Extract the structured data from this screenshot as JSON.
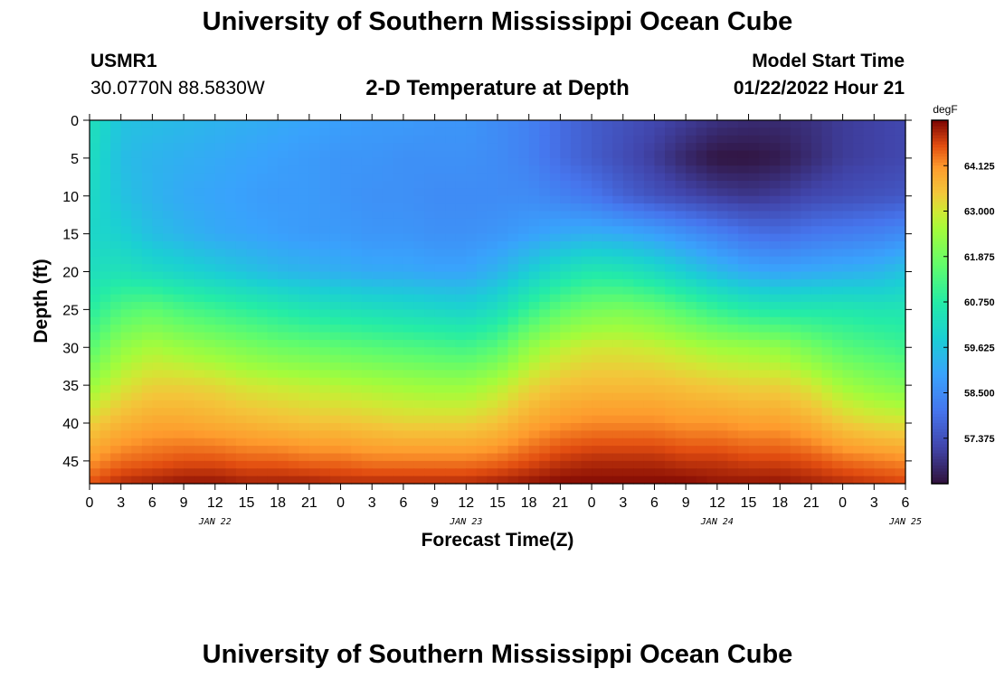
{
  "header": {
    "title": "University of Southern Mississippi Ocean Cube",
    "station_id": "USMR1",
    "station_location": "30.0770N  88.5830W",
    "subtitle": "2-D Temperature at Depth",
    "start_label": "Model Start Time",
    "start_value": "01/22/2022 Hour 21"
  },
  "footer": {
    "title": "University of Southern Mississippi Ocean Cube"
  },
  "chart_data": {
    "type": "heatmap",
    "title": "2-D Temperature at Depth",
    "xlabel": "Forecast Time(Z)",
    "ylabel": "Depth (ft)",
    "x_tick_labels": [
      "0",
      "3",
      "6",
      "9",
      "12",
      "15",
      "18",
      "21",
      "0",
      "3",
      "6",
      "9",
      "12",
      "15",
      "18",
      "21",
      "0",
      "3",
      "6",
      "9",
      "12",
      "15",
      "18",
      "21",
      "0",
      "3",
      "6"
    ],
    "x_day_labels": [
      {
        "label": "JAN 22",
        "hour_offset": 12
      },
      {
        "label": "JAN 23",
        "hour_offset": 36
      },
      {
        "label": "JAN 24",
        "hour_offset": 60
      },
      {
        "label": "JAN 25",
        "hour_offset": 78
      }
    ],
    "x_range_hours": [
      0,
      78
    ],
    "y_ticks": [
      0,
      5,
      10,
      15,
      20,
      25,
      30,
      35,
      40,
      45
    ],
    "y_range": [
      0,
      48
    ],
    "colorbar": {
      "unit": "degF",
      "ticks": [
        "64.125",
        "63.000",
        "61.875",
        "60.750",
        "59.625",
        "58.500",
        "57.375"
      ],
      "range": [
        56.25,
        65.25
      ]
    },
    "depth_levels_ft": [
      0,
      5,
      10,
      15,
      20,
      25,
      30,
      35,
      40,
      45,
      48
    ],
    "time_hours": [
      0,
      3,
      6,
      9,
      12,
      15,
      18,
      21,
      24,
      27,
      30,
      33,
      36,
      39,
      42,
      45,
      48,
      51,
      54,
      57,
      60,
      63,
      66,
      69,
      72,
      75,
      78
    ],
    "temperature_degF": [
      [
        60.4,
        59.6,
        59.5,
        59.4,
        59.3,
        59.2,
        59.1,
        59.0,
        58.9,
        58.8,
        58.8,
        58.7,
        58.7,
        58.5,
        58.3,
        57.9,
        57.6,
        57.4,
        57.2,
        57.0,
        56.8,
        56.7,
        56.7,
        56.8,
        57.0,
        57.1,
        57.2
      ],
      [
        60.3,
        59.5,
        59.3,
        59.2,
        59.1,
        59.0,
        58.9,
        58.8,
        58.7,
        58.7,
        58.6,
        58.6,
        58.6,
        58.5,
        58.3,
        57.9,
        57.6,
        57.3,
        57.0,
        56.6,
        56.3,
        56.3,
        56.4,
        56.7,
        57.0,
        57.1,
        57.2
      ],
      [
        60.2,
        59.6,
        59.3,
        59.1,
        59.0,
        58.9,
        58.8,
        58.8,
        58.7,
        58.6,
        58.6,
        58.5,
        58.5,
        58.5,
        58.5,
        58.3,
        58.1,
        57.7,
        57.4,
        57.2,
        57.0,
        56.9,
        57.0,
        57.2,
        57.3,
        57.4,
        57.5
      ],
      [
        60.1,
        59.9,
        59.5,
        59.3,
        59.1,
        59.0,
        58.9,
        58.8,
        58.8,
        58.7,
        58.7,
        58.6,
        58.6,
        58.7,
        58.9,
        59.1,
        59.2,
        59.1,
        58.9,
        58.6,
        58.3,
        58.0,
        57.9,
        58.1,
        58.2,
        58.3,
        58.5
      ],
      [
        60.3,
        60.4,
        60.2,
        60.0,
        59.8,
        59.6,
        59.4,
        59.3,
        59.2,
        59.1,
        59.1,
        59.0,
        59.0,
        59.3,
        59.8,
        60.3,
        60.6,
        60.5,
        60.2,
        59.8,
        59.4,
        59.1,
        59.0,
        59.1,
        59.2,
        59.3,
        59.6
      ],
      [
        60.8,
        61.4,
        61.6,
        61.3,
        61.1,
        60.9,
        60.7,
        60.5,
        60.4,
        60.3,
        60.2,
        60.1,
        60.0,
        60.3,
        61.0,
        61.6,
        61.9,
        62.0,
        61.8,
        61.4,
        61.0,
        60.7,
        60.6,
        60.6,
        60.6,
        60.5,
        60.5
      ],
      [
        61.5,
        62.3,
        62.6,
        62.4,
        62.2,
        62.0,
        61.8,
        61.7,
        61.6,
        61.5,
        61.4,
        61.3,
        61.2,
        61.5,
        62.3,
        62.8,
        63.0,
        63.0,
        62.9,
        62.7,
        62.5,
        62.4,
        62.3,
        61.9,
        61.5,
        61.3,
        61.1
      ],
      [
        62.4,
        63.0,
        63.3,
        63.3,
        63.2,
        63.0,
        62.9,
        62.8,
        62.7,
        62.6,
        62.5,
        62.4,
        62.4,
        62.7,
        63.2,
        63.5,
        63.6,
        63.6,
        63.6,
        63.5,
        63.4,
        63.3,
        63.3,
        63.0,
        62.5,
        62.2,
        62.0
      ],
      [
        63.3,
        63.7,
        63.9,
        63.9,
        63.8,
        63.7,
        63.6,
        63.5,
        63.5,
        63.4,
        63.3,
        63.3,
        63.3,
        63.5,
        63.9,
        64.1,
        64.2,
        64.2,
        64.2,
        64.1,
        64.1,
        64.0,
        64.0,
        63.8,
        63.4,
        63.2,
        63.1
      ],
      [
        64.1,
        64.4,
        64.5,
        64.6,
        64.6,
        64.5,
        64.5,
        64.4,
        64.4,
        64.3,
        64.3,
        64.3,
        64.3,
        64.4,
        64.6,
        64.8,
        64.9,
        64.9,
        64.9,
        64.8,
        64.8,
        64.7,
        64.7,
        64.6,
        64.4,
        64.3,
        64.2
      ],
      [
        64.6,
        64.9,
        65.0,
        65.1,
        65.1,
        65.0,
        65.0,
        65.0,
        64.9,
        64.9,
        64.9,
        64.9,
        64.9,
        65.0,
        65.1,
        65.2,
        65.2,
        65.2,
        65.2,
        65.2,
        65.1,
        65.1,
        65.1,
        65.0,
        64.9,
        64.8,
        64.7
      ]
    ]
  }
}
